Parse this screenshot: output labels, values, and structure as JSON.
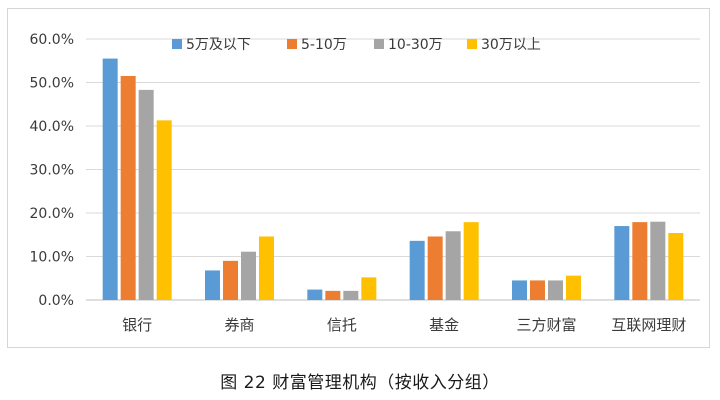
{
  "caption": "图 22 财富管理机构（按收入分组）",
  "chart_data": {
    "type": "bar",
    "title": "",
    "xlabel": "",
    "ylabel": "",
    "categories": [
      "银行",
      "券商",
      "信托",
      "基金",
      "三方财富",
      "互联网理财"
    ],
    "series": [
      {
        "name": "5万及以下",
        "color": "#5B9BD5",
        "values": [
          55.5,
          6.8,
          2.4,
          13.6,
          4.5,
          17.0
        ]
      },
      {
        "name": "5-10万",
        "color": "#ED7D31",
        "values": [
          51.5,
          9.0,
          2.1,
          14.6,
          4.5,
          17.9
        ]
      },
      {
        "name": "10-30万",
        "color": "#A5A5A5",
        "values": [
          48.3,
          11.1,
          2.1,
          15.8,
          4.5,
          18.0
        ]
      },
      {
        "name": "30万以上",
        "color": "#FFC000",
        "values": [
          41.3,
          14.6,
          5.2,
          17.9,
          5.6,
          15.4
        ]
      }
    ],
    "ylim": [
      0,
      60
    ],
    "yticks": [
      "0.0%",
      "10.0%",
      "20.0%",
      "30.0%",
      "40.0%",
      "50.0%",
      "60.0%"
    ],
    "ytick_values": [
      0,
      10,
      20,
      30,
      40,
      50,
      60
    ],
    "grid": true,
    "legend_position": "top"
  }
}
